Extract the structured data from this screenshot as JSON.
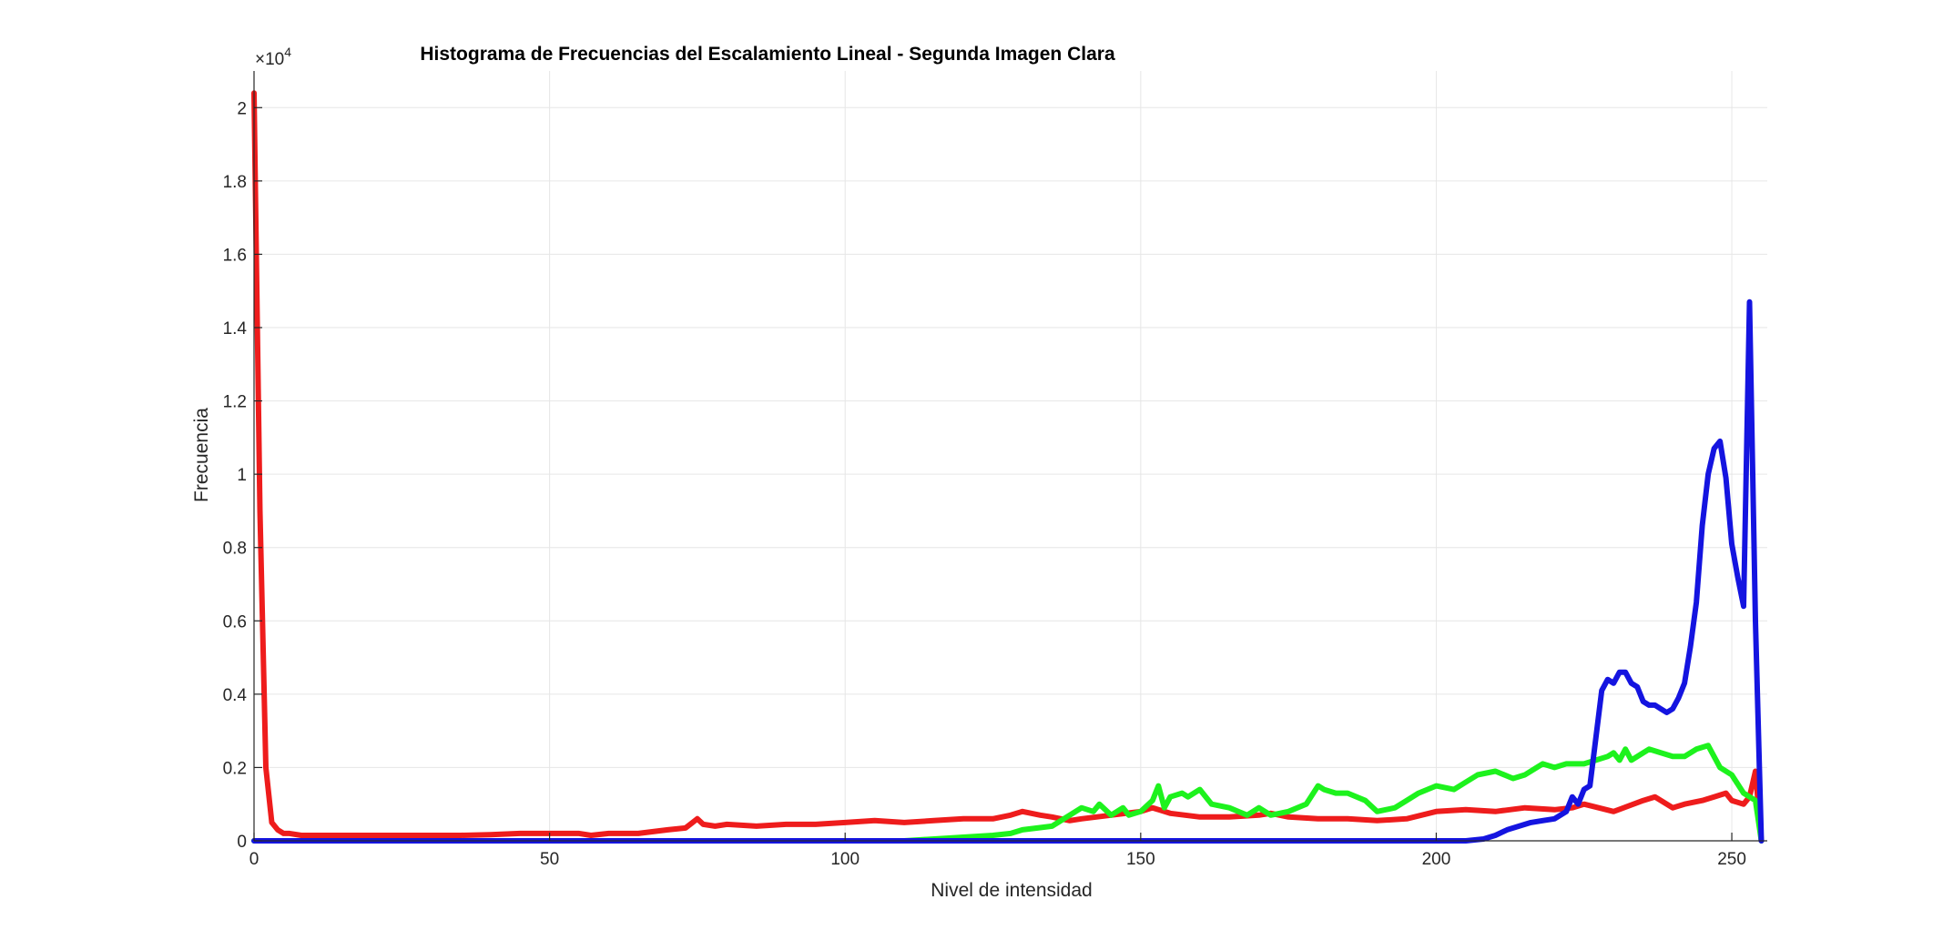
{
  "chart_data": {
    "type": "line",
    "title": "Histograma de Frecuencias del Escalamiento Lineal - Segunda Imagen Clara",
    "xlabel": "Nivel de intensidad",
    "ylabel": "Frecuencia",
    "xlim": [
      0,
      256
    ],
    "ylim": [
      0,
      21000
    ],
    "exponent_label": "×10",
    "exponent_power": "4",
    "xticks": [
      0,
      50,
      100,
      150,
      200,
      250
    ],
    "xtick_labels": [
      "0",
      "50",
      "100",
      "150",
      "200",
      "250"
    ],
    "yticks": [
      0,
      2000,
      4000,
      6000,
      8000,
      10000,
      12000,
      14000,
      16000,
      18000,
      20000
    ],
    "ytick_labels": [
      "0",
      "0.2",
      "0.4",
      "0.6",
      "0.8",
      "1",
      "1.2",
      "1.4",
      "1.6",
      "1.8",
      "2"
    ],
    "grid": true,
    "colors": {
      "red": "#ee1c1c",
      "green": "#1df21d",
      "blue": "#1414e0",
      "grid": "#e6e6e6",
      "axis": "#262626"
    },
    "series": [
      {
        "color": "#ee1c1c",
        "x": [
          0,
          1,
          2,
          3,
          4,
          5,
          6,
          8,
          10,
          15,
          20,
          25,
          30,
          35,
          40,
          45,
          50,
          55,
          57,
          60,
          65,
          70,
          73,
          75,
          76,
          78,
          80,
          85,
          90,
          95,
          100,
          105,
          110,
          115,
          120,
          125,
          128,
          130,
          133,
          135,
          138,
          140,
          145,
          150,
          152,
          155,
          160,
          165,
          170,
          172,
          175,
          180,
          185,
          190,
          195,
          200,
          205,
          210,
          215,
          220,
          223,
          225,
          230,
          235,
          237,
          240,
          242,
          245,
          247,
          249,
          250,
          252,
          253,
          254,
          255
        ],
        "y": [
          20400,
          9000,
          2000,
          500,
          300,
          200,
          200,
          150,
          150,
          150,
          150,
          150,
          150,
          150,
          170,
          200,
          200,
          200,
          150,
          200,
          200,
          300,
          350,
          600,
          450,
          400,
          450,
          400,
          450,
          450,
          500,
          550,
          500,
          550,
          600,
          600,
          700,
          800,
          700,
          650,
          550,
          600,
          700,
          800,
          900,
          750,
          650,
          650,
          700,
          750,
          650,
          600,
          600,
          550,
          600,
          800,
          850,
          800,
          900,
          850,
          900,
          1000,
          800,
          1100,
          1200,
          900,
          1000,
          1100,
          1200,
          1300,
          1100,
          1000,
          1200,
          1900,
          0
        ]
      },
      {
        "color": "#1df21d",
        "x": [
          0,
          110,
          120,
          125,
          128,
          130,
          135,
          138,
          140,
          142,
          143,
          145,
          147,
          148,
          150,
          152,
          153,
          154,
          155,
          157,
          158,
          160,
          162,
          165,
          168,
          170,
          172,
          175,
          178,
          180,
          181,
          183,
          185,
          188,
          190,
          193,
          195,
          197,
          200,
          203,
          205,
          207,
          210,
          213,
          215,
          217,
          218,
          220,
          222,
          225,
          227,
          229,
          230,
          231,
          232,
          233,
          235,
          236,
          238,
          240,
          242,
          244,
          246,
          248,
          250,
          252,
          254,
          255
        ],
        "y": [
          0,
          0,
          100,
          150,
          200,
          300,
          400,
          700,
          900,
          800,
          1000,
          700,
          900,
          700,
          800,
          1100,
          1500,
          900,
          1200,
          1300,
          1200,
          1400,
          1000,
          900,
          700,
          900,
          700,
          800,
          1000,
          1500,
          1400,
          1300,
          1300,
          1100,
          800,
          900,
          1100,
          1300,
          1500,
          1400,
          1600,
          1800,
          1900,
          1700,
          1800,
          2000,
          2100,
          2000,
          2100,
          2100,
          2200,
          2300,
          2400,
          2200,
          2500,
          2200,
          2400,
          2500,
          2400,
          2300,
          2300,
          2500,
          2600,
          2000,
          1800,
          1300,
          1100,
          0
        ]
      },
      {
        "color": "#1414e0",
        "x": [
          0,
          205,
          208,
          210,
          212,
          214,
          216,
          218,
          220,
          222,
          223,
          224,
          225,
          226,
          227,
          228,
          229,
          230,
          231,
          232,
          233,
          234,
          235,
          236,
          237,
          238,
          239,
          240,
          241,
          242,
          243,
          244,
          245,
          246,
          247,
          248,
          249,
          250,
          251,
          252,
          253,
          254,
          255
        ],
        "y": [
          0,
          0,
          50,
          150,
          300,
          400,
          500,
          550,
          600,
          800,
          1200,
          1000,
          1400,
          1500,
          2800,
          4100,
          4400,
          4300,
          4600,
          4600,
          4300,
          4200,
          3800,
          3700,
          3700,
          3600,
          3500,
          3600,
          3900,
          4300,
          5300,
          6500,
          8600,
          10000,
          10700,
          10900,
          9900,
          8100,
          7200,
          6400,
          14700,
          6000,
          0
        ]
      }
    ]
  }
}
